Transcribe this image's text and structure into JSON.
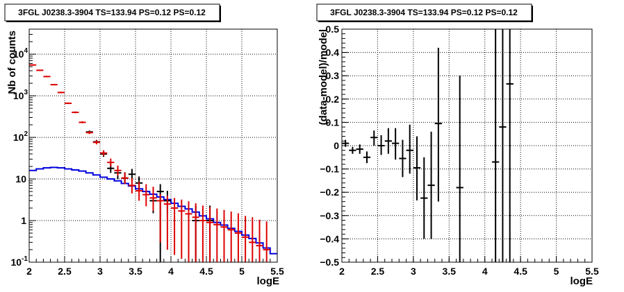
{
  "chart_data": [
    {
      "type": "line",
      "title": "3FGL J0238.3-3904 TS=133.94 PS=0.12 PS=0.12",
      "xlabel": "logE",
      "ylabel": "Nb of counts",
      "xlim": [
        2,
        5.5
      ],
      "ylim": [
        0.1,
        40000
      ],
      "yscale": "log",
      "grid": true,
      "xticks": [
        "2",
        "2.5",
        "3",
        "3.5",
        "4",
        "4.5",
        "5",
        "5.5"
      ],
      "yticks": [
        {
          "v": 0.1,
          "base": "10",
          "exp": "-1"
        },
        {
          "v": 1,
          "base": "1",
          "exp": ""
        },
        {
          "v": 10,
          "base": "10",
          "exp": ""
        },
        {
          "v": 100,
          "base": "10",
          "exp": "2"
        },
        {
          "v": 1000,
          "base": "10",
          "exp": "3"
        },
        {
          "v": 10000,
          "base": "10",
          "exp": "4"
        }
      ],
      "model_total": {
        "color": "#dd0000",
        "points": [
          {
            "x": 2.05,
            "y": 5500,
            "lo": 5300,
            "hi": 5700
          },
          {
            "x": 2.15,
            "y": 4100,
            "lo": 3950,
            "hi": 4250
          },
          {
            "x": 2.25,
            "y": 2900,
            "lo": 2790,
            "hi": 3010
          },
          {
            "x": 2.35,
            "y": 1850,
            "lo": 1780,
            "hi": 1920
          },
          {
            "x": 2.45,
            "y": 1200,
            "lo": 1150,
            "hi": 1250
          },
          {
            "x": 2.55,
            "y": 660,
            "lo": 630,
            "hi": 690
          },
          {
            "x": 2.65,
            "y": 400,
            "lo": 380,
            "hi": 420
          },
          {
            "x": 2.75,
            "y": 230,
            "lo": 218,
            "hi": 244
          },
          {
            "x": 2.85,
            "y": 130,
            "lo": 120,
            "hi": 141
          },
          {
            "x": 2.95,
            "y": 76,
            "lo": 68,
            "hi": 85
          },
          {
            "x": 3.05,
            "y": 42,
            "lo": 36,
            "hi": 49
          },
          {
            "x": 3.15,
            "y": 25,
            "lo": 20,
            "hi": 31
          },
          {
            "x": 3.25,
            "y": 16,
            "lo": 12,
            "hi": 21
          },
          {
            "x": 3.35,
            "y": 10.5,
            "lo": 7.5,
            "hi": 14.5
          },
          {
            "x": 3.45,
            "y": 7,
            "lo": 4.5,
            "hi": 10.5
          },
          {
            "x": 3.55,
            "y": 5.2,
            "lo": 3.0,
            "hi": 8.5
          },
          {
            "x": 3.65,
            "y": 4.2,
            "lo": 2.2,
            "hi": 7.5
          },
          {
            "x": 3.75,
            "y": 3.5,
            "lo": 1.7,
            "hi": 6.5
          },
          {
            "x": 3.85,
            "y": 3.0,
            "lo": 0.3,
            "hi": 4.3
          },
          {
            "x": 3.95,
            "y": 2.5,
            "lo": 0.2,
            "hi": 4.0
          },
          {
            "x": 4.05,
            "y": 2.0,
            "lo": 0.15,
            "hi": 3.5
          },
          {
            "x": 4.15,
            "y": 1.7,
            "lo": 0.12,
            "hi": 3.2
          },
          {
            "x": 4.25,
            "y": 1.45,
            "lo": 0.1,
            "hi": 2.9
          },
          {
            "x": 4.35,
            "y": 1.2,
            "lo": 0.1,
            "hi": 2.6
          },
          {
            "x": 4.45,
            "y": 1.0,
            "lo": 0.1,
            "hi": 2.3
          },
          {
            "x": 4.55,
            "y": 0.9,
            "lo": 0.1,
            "hi": 2.1
          },
          {
            "x": 4.65,
            "y": 0.8,
            "lo": 0.1,
            "hi": 1.95
          },
          {
            "x": 4.75,
            "y": 0.7,
            "lo": 0.1,
            "hi": 1.8
          },
          {
            "x": 4.85,
            "y": 0.6,
            "lo": 0.1,
            "hi": 1.65
          },
          {
            "x": 4.95,
            "y": 0.5,
            "lo": 0.1,
            "hi": 1.5
          },
          {
            "x": 5.05,
            "y": 0.4,
            "lo": 0.1,
            "hi": 1.3
          },
          {
            "x": 5.15,
            "y": 0.3,
            "lo": 0.1,
            "hi": 1.2
          },
          {
            "x": 5.25,
            "y": 0.25,
            "lo": 0.1,
            "hi": 1.05
          },
          {
            "x": 5.35,
            "y": 0.2,
            "lo": 0.1,
            "hi": 0.95
          }
        ]
      },
      "data": {
        "color": "#000000",
        "points": [
          {
            "x": 2.85,
            "y": 135,
            "lo": 125,
            "hi": 146
          },
          {
            "x": 2.95,
            "y": 78,
            "lo": 70,
            "hi": 87
          },
          {
            "x": 3.05,
            "y": 40,
            "lo": 34,
            "hi": 47
          },
          {
            "x": 3.15,
            "y": 18,
            "lo": 14,
            "hi": 23
          },
          {
            "x": 3.25,
            "y": 14,
            "lo": 10,
            "hi": 19
          },
          {
            "x": 3.35,
            "y": 10.5,
            "lo": 7.5,
            "hi": 14.5
          },
          {
            "x": 3.45,
            "y": 13,
            "lo": 9,
            "hi": 17.5
          },
          {
            "x": 3.55,
            "y": 8,
            "lo": 5,
            "hi": 11.5
          },
          {
            "x": 3.75,
            "y": 3.0,
            "lo": 1.5,
            "hi": 5.2
          },
          {
            "x": 3.85,
            "y": 5,
            "lo": 0.1,
            "hi": 7.5
          },
          {
            "x": 3.95,
            "y": 3.0,
            "lo": 1.5,
            "hi": 5.2
          },
          {
            "x": 4.35,
            "y": 1.0,
            "lo": 0.1,
            "hi": 2.3
          },
          {
            "x": 4.55,
            "y": 1.0,
            "lo": 0.1,
            "hi": 2.3
          }
        ]
      },
      "model_background": {
        "color": "#0000dd",
        "bin_edges": [
          2.0,
          2.1,
          2.2,
          2.3,
          2.4,
          2.5,
          2.6,
          2.7,
          2.8,
          2.9,
          3.0,
          3.1,
          3.2,
          3.3,
          3.4,
          3.5,
          3.6,
          3.7,
          3.8,
          3.9,
          4.0,
          4.1,
          4.2,
          4.3,
          4.4,
          4.5,
          4.6,
          4.7,
          4.8,
          4.9,
          5.0,
          5.1,
          5.2,
          5.3,
          5.4,
          5.5
        ],
        "values": [
          16,
          17.5,
          18.5,
          19,
          18.5,
          17.5,
          16.5,
          15.5,
          14,
          12.5,
          11,
          10,
          9,
          7.8,
          6.8,
          5.8,
          5,
          4.3,
          3.7,
          3.2,
          2.6,
          2.2,
          1.9,
          1.6,
          1.3,
          1.1,
          0.9,
          0.78,
          0.65,
          0.55,
          0.45,
          0.37,
          0.29,
          0.22,
          0.16
        ]
      }
    },
    {
      "type": "scatter",
      "title": "3FGL J0238.3-3904 TS=133.94 PS=0.12 PS=0.12",
      "xlabel": "logE",
      "ylabel": "(data-model)/model",
      "xlim": [
        2,
        5.5
      ],
      "ylim": [
        -0.5,
        0.5
      ],
      "grid": true,
      "xticks": [
        "2",
        "2.5",
        "3",
        "3.5",
        "4",
        "4.5",
        "5",
        "5.5"
      ],
      "yticks": [
        "−0.5",
        "−0.4",
        "−0.3",
        "−0.2",
        "−0.1",
        "0",
        "0.1",
        "0.2",
        "0.3",
        "0.4",
        "0.5"
      ],
      "points": [
        {
          "x": 2.05,
          "y": 0.01,
          "lo": -0.005,
          "hi": 0.025
        },
        {
          "x": 2.15,
          "y": -0.02,
          "lo": -0.035,
          "hi": -0.005
        },
        {
          "x": 2.25,
          "y": -0.015,
          "lo": -0.035,
          "hi": 0.005
        },
        {
          "x": 2.35,
          "y": -0.05,
          "lo": -0.075,
          "hi": -0.025
        },
        {
          "x": 2.45,
          "y": 0.035,
          "lo": 0.0,
          "hi": 0.065
        },
        {
          "x": 2.55,
          "y": 0.0,
          "lo": -0.04,
          "hi": 0.045
        },
        {
          "x": 2.65,
          "y": 0.02,
          "lo": -0.035,
          "hi": 0.075
        },
        {
          "x": 2.75,
          "y": 0.01,
          "lo": -0.06,
          "hi": 0.075
        },
        {
          "x": 2.85,
          "y": -0.055,
          "lo": -0.135,
          "hi": 0.025
        },
        {
          "x": 2.95,
          "y": -0.02,
          "lo": -0.12,
          "hi": 0.09
        },
        {
          "x": 3.05,
          "y": -0.095,
          "lo": -0.235,
          "hi": 0.04
        },
        {
          "x": 3.15,
          "y": -0.225,
          "lo": -0.4,
          "hi": -0.05
        },
        {
          "x": 3.25,
          "y": -0.17,
          "lo": -0.4,
          "hi": 0.06
        },
        {
          "x": 3.35,
          "y": 0.095,
          "lo": -0.24,
          "hi": 0.42
        },
        {
          "x": 3.65,
          "y": -0.18,
          "lo": -0.65,
          "hi": 0.3
        },
        {
          "x": 4.15,
          "y": -0.07,
          "lo": -0.65,
          "hi": 0.55
        },
        {
          "x": 4.25,
          "y": 0.08,
          "lo": -0.65,
          "hi": 0.55
        },
        {
          "x": 4.35,
          "y": 0.265,
          "lo": -0.65,
          "hi": 0.55
        }
      ]
    }
  ]
}
